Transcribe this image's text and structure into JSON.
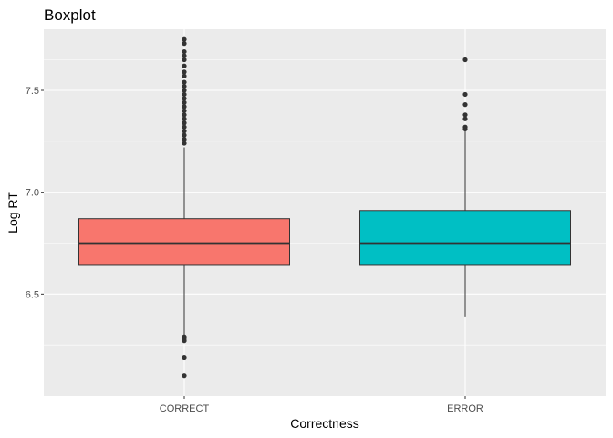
{
  "chart_data": {
    "type": "boxplot",
    "title": "Boxplot",
    "xlabel": "Correctness",
    "ylabel": "Log RT",
    "ylim": [
      6.0,
      7.8
    ],
    "y_ticks": [
      6.5,
      7.0,
      7.5
    ],
    "y_tick_labels": [
      "6.5",
      "7.0",
      "7.5"
    ],
    "grid": true,
    "legend": "none",
    "categories": [
      "CORRECT",
      "ERROR"
    ],
    "boxes": [
      {
        "category": "CORRECT",
        "fill": "#F8766D",
        "whisker_low": 6.3,
        "q1": 6.645,
        "median": 6.75,
        "q3": 6.87,
        "whisker_high": 7.22,
        "outliers": [
          7.75,
          7.73,
          7.69,
          7.67,
          7.65,
          7.62,
          7.59,
          7.57,
          7.54,
          7.52,
          7.5,
          7.48,
          7.46,
          7.44,
          7.42,
          7.4,
          7.38,
          7.36,
          7.34,
          7.32,
          7.3,
          7.28,
          7.26,
          7.24,
          6.29,
          6.28,
          6.27,
          6.19,
          6.1
        ]
      },
      {
        "category": "ERROR",
        "fill": "#00BFC4",
        "whisker_low": 6.39,
        "q1": 6.645,
        "median": 6.75,
        "q3": 6.91,
        "whisker_high": 7.3,
        "outliers": [
          7.65,
          7.48,
          7.43,
          7.38,
          7.36,
          7.32,
          7.31
        ]
      }
    ]
  }
}
